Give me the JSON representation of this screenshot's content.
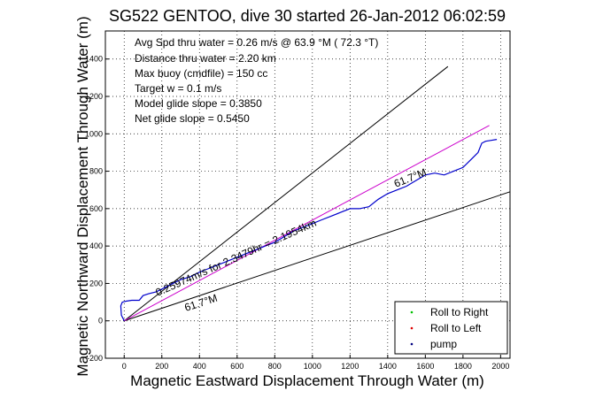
{
  "chart_data": {
    "type": "line",
    "title": "SG522 GENTOO, dive 30 started 26-Jan-2012 06:02:59",
    "xlabel": "Magnetic Eastward Displacement Through Water (m)",
    "ylabel": "Magnetic Northward Displacement Through Water (m)",
    "xlim": [
      -100,
      2050
    ],
    "ylim": [
      -200,
      1550
    ],
    "xticks": [
      "0",
      "200",
      "400",
      "600",
      "800",
      "1000",
      "1200",
      "1400",
      "1600",
      "1800",
      "2000"
    ],
    "yticks": [
      "-200",
      "0",
      "200",
      "400",
      "600",
      "800",
      "1000",
      "1200",
      "1400"
    ],
    "grid": true,
    "legend_position": "bottom-right",
    "legend": [
      {
        "label": "Roll to Right",
        "color": "#00c000"
      },
      {
        "label": "Roll to Left",
        "color": "#e00000"
      },
      {
        "label": "pump",
        "color": "#000080"
      }
    ],
    "info_lines": [
      "Avg Spd thru water =  0.26 m/s @  63.9   °M ( 72.3 °T)",
      "Distance thru water =  2.20 km",
      "Max buoy (cmdfile) = 150 cc",
      "Target w = 0.1 m/s",
      "Model glide slope = 0.3850",
      "Net glide slope = 0.5450"
    ],
    "annotations": {
      "heading_upper": "61.7°M",
      "heading_lower": "61.7°M",
      "along_track": "0.25974m/s for 2.3479hr = 2.1954km"
    },
    "track": {
      "color": "#0000cc",
      "x": [
        0,
        -15,
        -18,
        -10,
        10,
        40,
        80,
        100,
        130,
        170,
        200,
        240,
        260,
        300,
        350,
        400,
        450,
        500,
        550,
        600,
        650,
        700,
        750,
        800,
        850,
        900,
        950,
        1000,
        1050,
        1100,
        1150,
        1200,
        1250,
        1300,
        1350,
        1400,
        1450,
        1500,
        1550,
        1600,
        1650,
        1700,
        1750,
        1800,
        1850,
        1880,
        1900,
        1920,
        1950,
        1980
      ],
      "y": [
        0,
        30,
        80,
        100,
        105,
        110,
        110,
        135,
        145,
        155,
        170,
        190,
        200,
        220,
        235,
        260,
        280,
        300,
        320,
        340,
        360,
        380,
        400,
        420,
        450,
        480,
        500,
        520,
        540,
        560,
        580,
        600,
        600,
        610,
        650,
        680,
        700,
        720,
        750,
        780,
        790,
        780,
        800,
        820,
        870,
        900,
        950,
        960,
        965,
        970
      ]
    },
    "reference_lines": [
      {
        "name": "",
        "color": "#000000",
        "x": [
          0,
          1720
        ],
        "y": [
          0,
          1360
        ]
      },
      {
        "name": "",
        "color": "#000000",
        "x": [
          0,
          2050
        ],
        "y": [
          0,
          690
        ]
      },
      {
        "name": "",
        "color": "#cc00cc",
        "x": [
          0,
          1940
        ],
        "y": [
          0,
          1045
        ]
      }
    ]
  }
}
